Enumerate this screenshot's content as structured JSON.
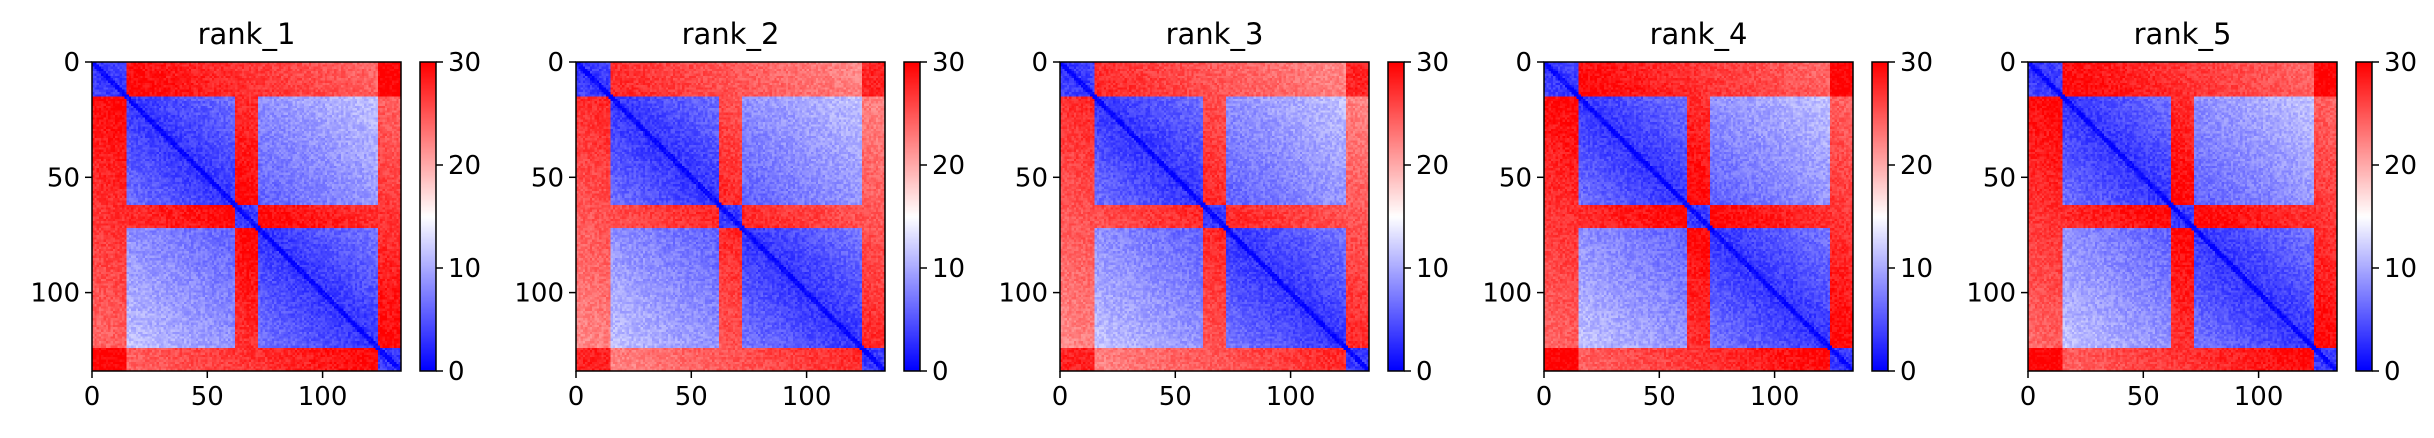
{
  "chart_data": [
    {
      "type": "heatmap",
      "title": "rank_1",
      "matrix_size": 134,
      "xlim": [
        0,
        134
      ],
      "ylim": [
        134,
        0
      ],
      "xticks": [
        "0",
        "50",
        "100"
      ],
      "yticks": [
        "0",
        "50",
        "100"
      ],
      "colorbar": {
        "range": [
          0,
          30
        ],
        "ticks": [
          "0",
          "10",
          "20",
          "30"
        ],
        "colormap": "bwr"
      },
      "structure": {
        "domain_boundaries": [
          15,
          62,
          72,
          124
        ],
        "interdomain_value": 30,
        "intradomain_value": 3,
        "diagonal_value": 0
      }
    },
    {
      "type": "heatmap",
      "title": "rank_2",
      "matrix_size": 134,
      "xlim": [
        0,
        134
      ],
      "ylim": [
        134,
        0
      ],
      "xticks": [
        "0",
        "50",
        "100"
      ],
      "yticks": [
        "0",
        "50",
        "100"
      ],
      "colorbar": {
        "range": [
          0,
          30
        ],
        "ticks": [
          "0",
          "10",
          "20",
          "30"
        ],
        "colormap": "bwr"
      },
      "structure": {
        "domain_boundaries": [
          15,
          62,
          72,
          124
        ],
        "interdomain_value": 28,
        "intradomain_value": 3,
        "diagonal_value": 0
      }
    },
    {
      "type": "heatmap",
      "title": "rank_3",
      "matrix_size": 134,
      "xlim": [
        0,
        134
      ],
      "ylim": [
        134,
        0
      ],
      "xticks": [
        "0",
        "50",
        "100"
      ],
      "yticks": [
        "0",
        "50",
        "100"
      ],
      "colorbar": {
        "range": [
          0,
          30
        ],
        "ticks": [
          "0",
          "10",
          "20",
          "30"
        ],
        "colormap": "bwr"
      },
      "structure": {
        "domain_boundaries": [
          15,
          62,
          72,
          124
        ],
        "interdomain_value": 28,
        "intradomain_value": 3,
        "diagonal_value": 0
      }
    },
    {
      "type": "heatmap",
      "title": "rank_4",
      "matrix_size": 134,
      "xlim": [
        0,
        134
      ],
      "ylim": [
        134,
        0
      ],
      "xticks": [
        "0",
        "50",
        "100"
      ],
      "yticks": [
        "0",
        "50",
        "100"
      ],
      "colorbar": {
        "range": [
          0,
          30
        ],
        "ticks": [
          "0",
          "10",
          "20",
          "30"
        ],
        "colormap": "bwr"
      },
      "structure": {
        "domain_boundaries": [
          15,
          62,
          72,
          124
        ],
        "interdomain_value": 30,
        "intradomain_value": 3,
        "diagonal_value": 0
      }
    },
    {
      "type": "heatmap",
      "title": "rank_5",
      "matrix_size": 134,
      "xlim": [
        0,
        134
      ],
      "ylim": [
        134,
        0
      ],
      "xticks": [
        "0",
        "50",
        "100"
      ],
      "yticks": [
        "0",
        "50",
        "100"
      ],
      "colorbar": {
        "range": [
          0,
          30
        ],
        "ticks": [
          "0",
          "10",
          "20",
          "30"
        ],
        "colormap": "bwr"
      },
      "structure": {
        "domain_boundaries": [
          15,
          62,
          72,
          124
        ],
        "interdomain_value": 30,
        "intradomain_value": 3,
        "diagonal_value": 0
      }
    }
  ]
}
